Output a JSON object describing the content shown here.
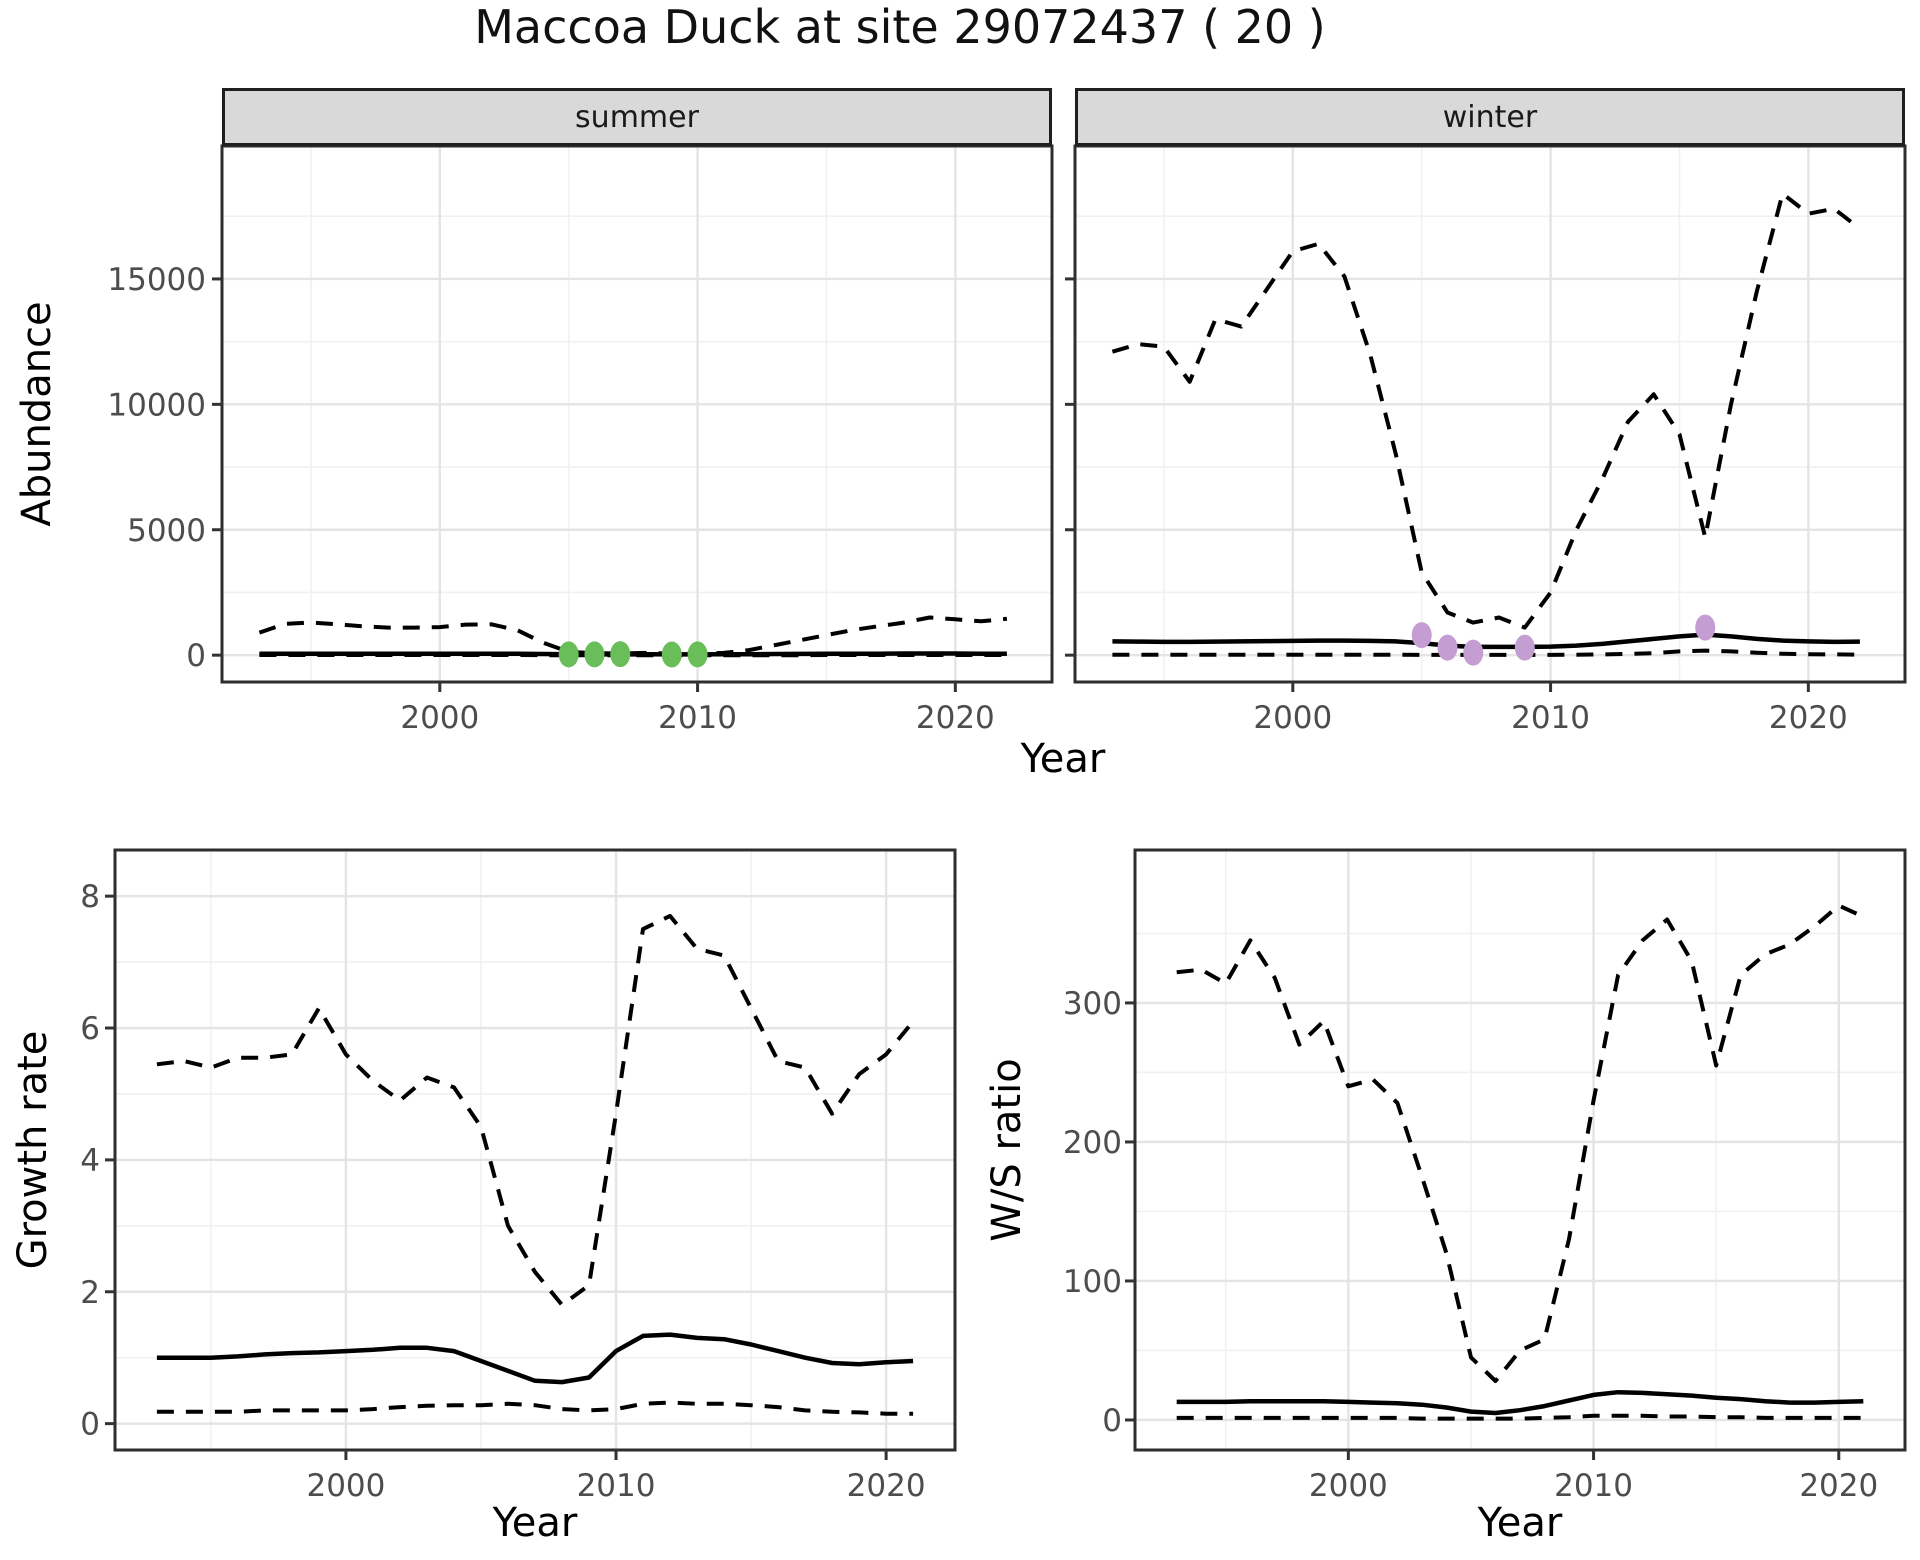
{
  "title": "Maccoa Duck at site 29072437 ( 20 )",
  "colors": {
    "line": "#000000",
    "strip_bg": "#D9D9D9",
    "grid_major": "#E4E4E4",
    "grid_minor": "#F1F1F1",
    "tick_label": "#4d4d4d",
    "observed_summer": "#6ABE59",
    "observed_winter": "#C49DD2"
  },
  "chart_data": [
    {
      "id": "abundance-summer",
      "type": "line",
      "facet_label": "summer",
      "ylabel": "Abundance",
      "xlabel": "Year",
      "xlim": [
        1991.55,
        2023.75
      ],
      "ylim": [
        -1070,
        20300
      ],
      "x_ticks": [
        2000,
        2010,
        2020
      ],
      "x_minor": [
        1995,
        2005,
        2015
      ],
      "y_ticks": [
        0,
        5000,
        10000,
        15000
      ],
      "y_minor": [
        2500,
        7500,
        12500,
        17500
      ],
      "years": [
        1993,
        1994,
        1995,
        1996,
        1997,
        1998,
        1999,
        2000,
        2001,
        2002,
        2003,
        2004,
        2005,
        2006,
        2007,
        2008,
        2009,
        2010,
        2011,
        2012,
        2013,
        2014,
        2015,
        2016,
        2017,
        2018,
        2019,
        2020,
        2021,
        2022
      ],
      "series": [
        {
          "name": "fit",
          "style": "solid",
          "values": [
            60,
            60,
            60,
            60,
            60,
            60,
            60,
            60,
            60,
            60,
            55,
            45,
            35,
            30,
            30,
            35,
            30,
            30,
            35,
            40,
            45,
            50,
            55,
            60,
            60,
            65,
            65,
            65,
            60,
            60
          ]
        },
        {
          "name": "lower-ci",
          "style": "dashed",
          "values": [
            5,
            5,
            5,
            5,
            5,
            5,
            5,
            5,
            5,
            5,
            5,
            0,
            0,
            0,
            0,
            0,
            0,
            0,
            0,
            0,
            0,
            0,
            5,
            5,
            5,
            5,
            5,
            5,
            5,
            5
          ]
        },
        {
          "name": "upper-ci",
          "style": "dashed",
          "values": [
            900,
            1250,
            1300,
            1230,
            1150,
            1100,
            1100,
            1120,
            1220,
            1230,
            1000,
            500,
            130,
            80,
            70,
            90,
            60,
            60,
            90,
            200,
            400,
            600,
            800,
            1000,
            1150,
            1300,
            1500,
            1430,
            1350,
            1450
          ]
        }
      ],
      "points": {
        "name": "observed-counts",
        "color": "#6ABE59",
        "data": [
          [
            2005,
            30
          ],
          [
            2006,
            30
          ],
          [
            2007,
            40
          ],
          [
            2009,
            25
          ],
          [
            2010,
            30
          ]
        ]
      }
    },
    {
      "id": "abundance-winter",
      "type": "line",
      "facet_label": "winter",
      "ylabel": "Abundance",
      "xlabel": "Year",
      "xlim": [
        1991.55,
        2023.75
      ],
      "ylim": [
        -1070,
        20300
      ],
      "x_ticks": [
        2000,
        2010,
        2020
      ],
      "x_minor": [
        1995,
        2005,
        2015
      ],
      "y_ticks": [
        0,
        5000,
        10000,
        15000
      ],
      "y_minor": [
        2500,
        7500,
        12500,
        17500
      ],
      "years": [
        1993,
        1994,
        1995,
        1996,
        1997,
        1998,
        1999,
        2000,
        2001,
        2002,
        2003,
        2004,
        2005,
        2006,
        2007,
        2008,
        2009,
        2010,
        2011,
        2012,
        2013,
        2014,
        2015,
        2016,
        2017,
        2018,
        2019,
        2020,
        2021,
        2022
      ],
      "series": [
        {
          "name": "fit",
          "style": "solid",
          "values": [
            550,
            540,
            530,
            530,
            540,
            550,
            560,
            570,
            580,
            580,
            570,
            550,
            480,
            380,
            330,
            330,
            330,
            340,
            380,
            450,
            550,
            650,
            750,
            820,
            750,
            650,
            580,
            550,
            530,
            540
          ]
        },
        {
          "name": "lower-ci",
          "style": "dashed",
          "values": [
            20,
            20,
            20,
            20,
            20,
            20,
            20,
            20,
            20,
            20,
            20,
            20,
            10,
            10,
            10,
            10,
            10,
            10,
            20,
            30,
            50,
            80,
            150,
            180,
            150,
            100,
            60,
            40,
            30,
            20
          ]
        },
        {
          "name": "upper-ci",
          "style": "dashed",
          "values": [
            12100,
            12400,
            12300,
            10900,
            13400,
            13100,
            14600,
            16100,
            16400,
            15100,
            12000,
            8000,
            3300,
            1700,
            1300,
            1500,
            1100,
            2500,
            5000,
            7000,
            9300,
            10400,
            8800,
            4700,
            10000,
            14500,
            18400,
            17600,
            17800,
            17000
          ]
        }
      ],
      "points": {
        "name": "observed-counts",
        "color": "#C49DD2",
        "data": [
          [
            2005,
            800
          ],
          [
            2006,
            300
          ],
          [
            2007,
            100
          ],
          [
            2009,
            300
          ],
          [
            2016,
            1100
          ]
        ]
      }
    },
    {
      "id": "growth-rate",
      "type": "line",
      "facet_label": "",
      "ylabel": "Growth rate",
      "xlabel": "Year",
      "xlim": [
        1991.45,
        2022.55
      ],
      "ylim": [
        -0.4,
        8.7
      ],
      "x_ticks": [
        2000,
        2010,
        2020
      ],
      "x_minor": [
        1995,
        2005,
        2015
      ],
      "y_ticks": [
        0,
        2,
        4,
        6,
        8
      ],
      "y_minor": [
        1,
        3,
        5,
        7
      ],
      "years": [
        1993,
        1994,
        1995,
        1996,
        1997,
        1998,
        1999,
        2000,
        2001,
        2002,
        2003,
        2004,
        2005,
        2006,
        2007,
        2008,
        2009,
        2010,
        2011,
        2012,
        2013,
        2014,
        2015,
        2016,
        2017,
        2018,
        2019,
        2020,
        2021
      ],
      "series": [
        {
          "name": "fit",
          "style": "solid",
          "values": [
            1.0,
            1.0,
            1.0,
            1.02,
            1.05,
            1.07,
            1.08,
            1.1,
            1.12,
            1.15,
            1.15,
            1.1,
            0.95,
            0.8,
            0.65,
            0.63,
            0.7,
            1.1,
            1.33,
            1.35,
            1.3,
            1.28,
            1.2,
            1.1,
            1.0,
            0.92,
            0.9,
            0.93,
            0.95
          ]
        },
        {
          "name": "lower-ci",
          "style": "dashed",
          "values": [
            0.18,
            0.18,
            0.18,
            0.18,
            0.2,
            0.2,
            0.2,
            0.2,
            0.22,
            0.25,
            0.27,
            0.28,
            0.28,
            0.3,
            0.28,
            0.22,
            0.2,
            0.22,
            0.3,
            0.32,
            0.3,
            0.3,
            0.28,
            0.25,
            0.2,
            0.18,
            0.17,
            0.15,
            0.15
          ]
        },
        {
          "name": "upper-ci",
          "style": "dashed",
          "values": [
            5.45,
            5.5,
            5.4,
            5.55,
            5.55,
            5.6,
            6.3,
            5.6,
            5.2,
            4.9,
            5.25,
            5.1,
            4.5,
            3.0,
            2.3,
            1.8,
            2.1,
            4.7,
            7.5,
            7.7,
            7.2,
            7.1,
            6.3,
            5.5,
            5.4,
            4.7,
            5.3,
            5.6,
            6.1
          ]
        }
      ],
      "points": null
    },
    {
      "id": "ws-ratio",
      "type": "line",
      "facet_label": "",
      "ylabel": "W/S ratio",
      "xlabel": "Year",
      "xlim": [
        1991.3,
        2022.7
      ],
      "ylim": [
        -21.6,
        410
      ],
      "x_ticks": [
        2000,
        2010,
        2020
      ],
      "x_minor": [
        1995,
        2005,
        2015
      ],
      "y_ticks": [
        0,
        100,
        200,
        300
      ],
      "y_minor": [
        50,
        150,
        250,
        350
      ],
      "years": [
        1993,
        1994,
        1995,
        1996,
        1997,
        1998,
        1999,
        2000,
        2001,
        2002,
        2003,
        2004,
        2005,
        2006,
        2007,
        2008,
        2009,
        2010,
        2011,
        2012,
        2013,
        2014,
        2015,
        2016,
        2017,
        2018,
        2019,
        2020,
        2021
      ],
      "series": [
        {
          "name": "fit",
          "style": "solid",
          "values": [
            13,
            13,
            13,
            13.5,
            13.5,
            13.5,
            13.5,
            13,
            12.5,
            12,
            11,
            9,
            6,
            5,
            7,
            10,
            14,
            18,
            20,
            19.5,
            18.5,
            17.5,
            16,
            15,
            13.5,
            12.5,
            12.5,
            13,
            13.5
          ]
        },
        {
          "name": "lower-ci",
          "style": "dashed",
          "values": [
            1.5,
            1.5,
            1.5,
            1.5,
            1.5,
            1.5,
            1.5,
            1.5,
            1.5,
            1.5,
            1,
            1,
            1,
            1,
            1,
            1.5,
            2,
            3,
            3,
            3,
            2.5,
            2.5,
            2,
            2,
            1.5,
            1.5,
            1.5,
            1.5,
            1.5
          ]
        },
        {
          "name": "upper-ci",
          "style": "dashed",
          "values": [
            322,
            324,
            314,
            345,
            318,
            270,
            287,
            240,
            245,
            228,
            175,
            120,
            45,
            28,
            50,
            58,
            130,
            230,
            320,
            345,
            360,
            330,
            255,
            320,
            335,
            342,
            355,
            370,
            362
          ]
        }
      ],
      "points": null
    }
  ]
}
